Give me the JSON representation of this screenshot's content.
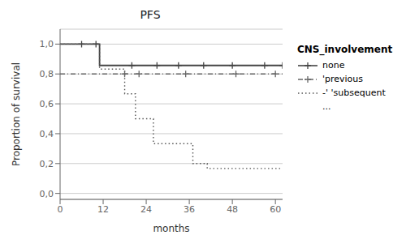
{
  "chart_data": {
    "type": "line",
    "title": "PFS",
    "xlabel": "months",
    "ylabel": "Proportion of survival",
    "xlim": [
      0,
      62
    ],
    "ylim": [
      -0.04,
      1.1
    ],
    "xticks": [
      0,
      12,
      24,
      36,
      48,
      60
    ],
    "yticks": [
      {
        "value": 0.0,
        "label": "0,0"
      },
      {
        "value": 0.2,
        "label": "0,2"
      },
      {
        "value": 0.4,
        "label": "0,4"
      },
      {
        "value": 0.6,
        "label": "0,6"
      },
      {
        "value": 0.8,
        "label": "0,8"
      },
      {
        "value": 1.0,
        "label": "1,0"
      }
    ],
    "grid": true,
    "legend": "right",
    "legend_title": "CNS_involvement",
    "series": [
      {
        "name": "none",
        "color": "#444444",
        "line_style": "solid",
        "marker": "+",
        "x": [
          0,
          11,
          11,
          62
        ],
        "values": [
          1.0,
          1.0,
          0.857,
          0.857
        ],
        "censor_x": [
          6,
          10,
          20,
          27,
          33,
          40,
          48,
          57,
          62
        ],
        "censor_values": [
          1.0,
          1.0,
          0.857,
          0.857,
          0.857,
          0.857,
          0.857,
          0.857,
          0.857
        ]
      },
      {
        "name": "'previous",
        "color": "#666666",
        "line_style": "dashdot",
        "marker": "+",
        "x": [
          0,
          62
        ],
        "values": [
          0.8,
          0.8
        ],
        "censor_x": [
          18,
          22,
          35,
          49,
          60
        ],
        "censor_values": [
          0.8,
          0.8,
          0.8,
          0.8,
          0.8
        ]
      },
      {
        "name": "-' 'subsequent",
        "color": "#555555",
        "line_style": "dotted",
        "x": [
          0,
          11,
          11,
          18,
          18,
          21,
          21,
          26,
          26,
          29,
          29,
          34,
          34,
          37,
          37,
          41,
          41,
          62
        ],
        "values": [
          1.0,
          1.0,
          0.833,
          0.833,
          0.667,
          0.667,
          0.5,
          0.5,
          0.333,
          0.333,
          0.333,
          0.333,
          0.333,
          0.333,
          0.2,
          0.2,
          0.167,
          0.167
        ]
      },
      {
        "name": "...",
        "color": "#ffffff",
        "line_style": "none",
        "x": [],
        "values": []
      }
    ]
  }
}
